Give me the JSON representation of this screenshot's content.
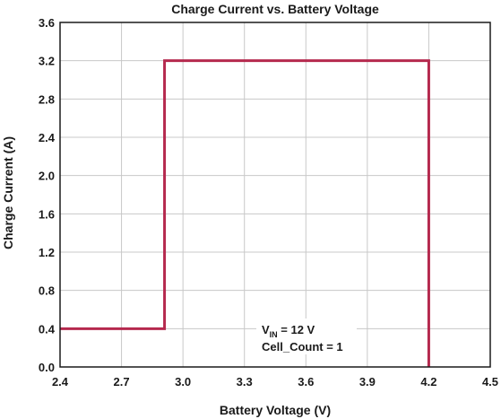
{
  "chart_data": {
    "type": "line",
    "title": "Charge Current vs. Battery Voltage",
    "xlabel": "Battery Voltage (V)",
    "ylabel": "Charge Current (A)",
    "xlim": [
      2.4,
      4.5
    ],
    "ylim": [
      0.0,
      3.6
    ],
    "x_ticks": [
      "2.4",
      "2.7",
      "3.0",
      "3.3",
      "3.6",
      "3.9",
      "4.2",
      "4.5"
    ],
    "y_ticks": [
      "0.0",
      "0.4",
      "0.8",
      "1.2",
      "1.6",
      "2.0",
      "2.4",
      "2.8",
      "3.2",
      "3.6"
    ],
    "grid": true,
    "series": [
      {
        "color": "#b5294e",
        "x": [
          2.4,
          2.91,
          2.91,
          4.2,
          4.2
        ],
        "y": [
          0.4,
          0.4,
          3.2,
          3.2,
          0.0
        ]
      }
    ],
    "annotation": {
      "vin_main": "V",
      "vin_sub": "IN",
      "vin_rest": " = 12 V",
      "cell_count": "Cell_Count = 1"
    }
  }
}
